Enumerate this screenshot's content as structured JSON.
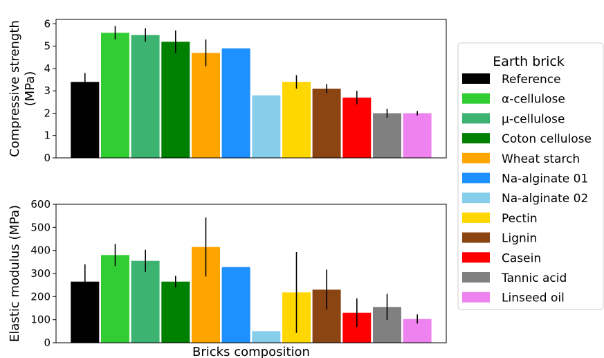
{
  "chart_data": [
    {
      "type": "bar",
      "ylabel_lines": [
        "Compressive strength",
        "(MPa)"
      ],
      "xlabel": "",
      "ylim": [
        0,
        6.2
      ],
      "yticks": [
        0,
        1,
        2,
        3,
        4,
        5,
        6
      ],
      "grid": false,
      "categories": [
        "Reference",
        "α-cellulose",
        "μ-cellulose",
        "Coton cellulose",
        "Wheat starch",
        "Na-alginate 01",
        "Na-alginate 02",
        "Pectin",
        "Lignin",
        "Casein",
        "Tannic acid",
        "Linseed oil"
      ],
      "values": [
        3.4,
        5.6,
        5.5,
        5.2,
        4.7,
        4.9,
        2.8,
        3.4,
        3.1,
        2.7,
        2.0,
        2.0
      ],
      "errors": [
        0.4,
        0.3,
        0.3,
        0.5,
        0.6,
        0.0,
        0.0,
        0.3,
        0.2,
        0.3,
        0.2,
        0.1
      ]
    },
    {
      "type": "bar",
      "ylabel": "Elastic modulus (MPa)",
      "xlabel": "Bricks composition",
      "ylim": [
        0,
        600
      ],
      "yticks": [
        0,
        100,
        200,
        300,
        400,
        500,
        600
      ],
      "grid": false,
      "categories": [
        "Reference",
        "α-cellulose",
        "μ-cellulose",
        "Coton cellulose",
        "Wheat starch",
        "Na-alginate 01",
        "Na-alginate 02",
        "Pectin",
        "Lignin",
        "Casein",
        "Tannic acid",
        "Linseed oil"
      ],
      "values": [
        265,
        380,
        355,
        265,
        415,
        328,
        50,
        218,
        230,
        130,
        155,
        103
      ],
      "errors": [
        75,
        48,
        48,
        25,
        128,
        0,
        0,
        175,
        87,
        62,
        57,
        20
      ]
    }
  ],
  "legend": {
    "title": "Earth brick",
    "placement": "right",
    "items": [
      {
        "label": "Reference",
        "color": "#000000"
      },
      {
        "label": "α-cellulose",
        "color": "#32cd32"
      },
      {
        "label": "μ-cellulose",
        "color": "#3cb371"
      },
      {
        "label": "Coton cellulose",
        "color": "#008000"
      },
      {
        "label": "Wheat starch",
        "color": "#ffa500"
      },
      {
        "label": "Na-alginate 01",
        "color": "#1e90ff"
      },
      {
        "label": "Na-alginate 02",
        "color": "#87ceeb"
      },
      {
        "label": "Pectin",
        "color": "#ffd700"
      },
      {
        "label": "Lignin",
        "color": "#8b4513"
      },
      {
        "label": "Casein",
        "color": "#ff0000"
      },
      {
        "label": "Tannic acid",
        "color": "#808080"
      },
      {
        "label": "Linseed oil",
        "color": "#ee82ee"
      }
    ]
  }
}
